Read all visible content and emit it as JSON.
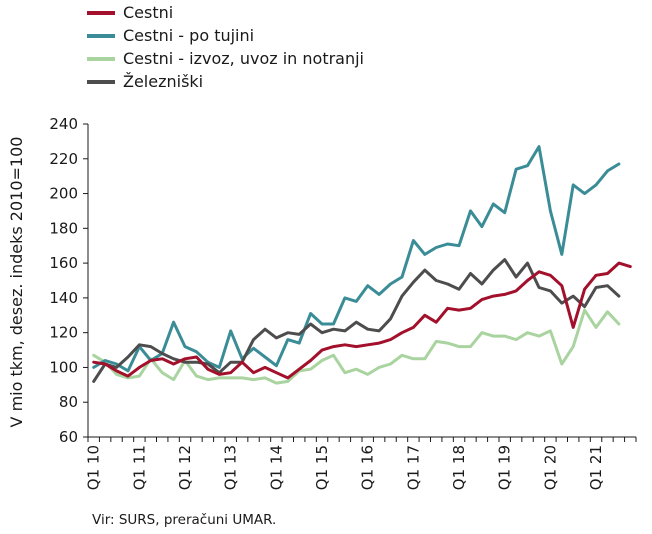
{
  "chart_data": {
    "type": "line",
    "title": "",
    "xlabel": "",
    "ylabel": "V mio tkm, desez. indeks 2010=100",
    "ylim": [
      60,
      240
    ],
    "yticks": [
      60,
      80,
      100,
      120,
      140,
      160,
      180,
      200,
      220,
      240
    ],
    "x_tick_labels": [
      "Q1 10",
      "Q1 11",
      "Q1 12",
      "Q1 13",
      "Q1 14",
      "Q1 15",
      "Q1 16",
      "Q1 17",
      "Q1 18",
      "Q1 19",
      "Q1 20",
      "Q1 21"
    ],
    "x_tick_start_index": 0,
    "x_tick_every": 4,
    "grid": false,
    "legend_position": "top-left",
    "x": [
      "Q1 10",
      "Q2 10",
      "Q3 10",
      "Q4 10",
      "Q1 11",
      "Q2 11",
      "Q3 11",
      "Q4 11",
      "Q1 12",
      "Q2 12",
      "Q3 12",
      "Q4 12",
      "Q1 13",
      "Q2 13",
      "Q3 13",
      "Q4 13",
      "Q1 14",
      "Q2 14",
      "Q3 14",
      "Q4 14",
      "Q1 15",
      "Q2 15",
      "Q3 15",
      "Q4 15",
      "Q1 16",
      "Q2 16",
      "Q3 16",
      "Q4 16",
      "Q1 17",
      "Q2 17",
      "Q3 17",
      "Q4 17",
      "Q1 18",
      "Q2 18",
      "Q3 18",
      "Q4 18",
      "Q1 19",
      "Q2 19",
      "Q3 19",
      "Q4 19",
      "Q1 20",
      "Q2 20",
      "Q3 20",
      "Q4 20",
      "Q1 21",
      "Q2 21",
      "Q3 21",
      "Q4 21"
    ],
    "series": [
      {
        "name": "Cestni",
        "color": "#a3102b",
        "values": [
          103,
          102,
          98,
          95,
          100,
          104,
          105,
          102,
          105,
          106,
          99,
          96,
          97,
          103,
          97,
          100,
          97,
          94,
          99,
          104,
          110,
          112,
          113,
          112,
          113,
          114,
          116,
          120,
          123,
          130,
          126,
          134,
          133,
          134,
          139,
          141,
          142,
          144,
          150,
          155,
          153,
          147,
          123,
          145,
          153,
          154,
          160,
          158
        ]
      },
      {
        "name": "Cestni - po tujini",
        "color": "#3a8c96",
        "values": [
          100,
          104,
          102,
          98,
          112,
          104,
          108,
          126,
          112,
          109,
          103,
          100,
          121,
          105,
          111,
          106,
          101,
          116,
          114,
          131,
          125,
          125,
          140,
          138,
          147,
          142,
          148,
          152,
          173,
          165,
          169,
          171,
          170,
          190,
          181,
          194,
          189,
          214,
          216,
          227,
          190,
          165,
          205,
          200,
          205,
          213,
          217,
          0
        ]
      },
      {
        "name": "Cestni - izvoz, uvoz in notranji",
        "color": "#a9d4a0",
        "values": [
          107,
          103,
          96,
          94,
          95,
          105,
          97,
          93,
          104,
          95,
          93,
          94,
          94,
          94,
          93,
          94,
          91,
          92,
          98,
          99,
          104,
          107,
          97,
          99,
          96,
          100,
          102,
          107,
          105,
          105,
          115,
          114,
          112,
          112,
          120,
          118,
          118,
          116,
          120,
          118,
          121,
          102,
          112,
          133,
          123,
          132,
          125,
          0
        ]
      },
      {
        "name": "Železniški",
        "color": "#4d4d4d",
        "values": [
          92,
          102,
          100,
          106,
          113,
          112,
          108,
          105,
          103,
          103,
          102,
          97,
          103,
          103,
          116,
          122,
          117,
          120,
          119,
          125,
          120,
          122,
          121,
          126,
          122,
          121,
          128,
          141,
          149,
          156,
          150,
          148,
          145,
          154,
          148,
          156,
          162,
          152,
          160,
          146,
          144,
          137,
          141,
          135,
          146,
          147,
          141,
          0
        ]
      }
    ]
  },
  "source_note": "Vir: SURS, preračuni UMAR."
}
